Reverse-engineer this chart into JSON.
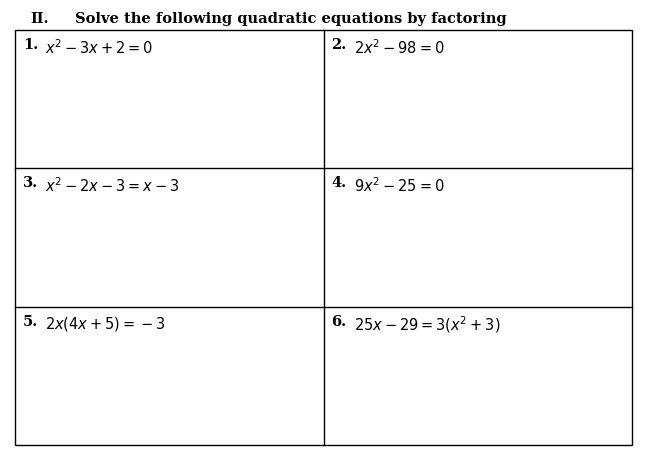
{
  "title_roman": "II.",
  "title_text": "Solve the following quadratic equations by factoring",
  "problems": [
    {
      "num": "1.",
      "eq": "$x^2 - 3x + 2 = 0$"
    },
    {
      "num": "2.",
      "eq": "$2x^2 - 98 = 0$"
    },
    {
      "num": "3.",
      "eq": "$x^2 - 2x - 3 = x - 3$"
    },
    {
      "num": "4.",
      "eq": "$9x^2 - 25 = 0$"
    },
    {
      "num": "5.",
      "eq": "$2x(4x + 5) = -3$"
    },
    {
      "num": "6.",
      "eq": "$25x - 29 = 3(x^2 + 3)$"
    }
  ],
  "bg_color": "#ffffff",
  "text_color": "#000000",
  "grid_color": "#000000",
  "title_fontsize": 10.5,
  "eq_fontsize": 10.5,
  "num_fontsize": 10.5,
  "fig_width": 6.47,
  "fig_height": 4.5,
  "dpi": 100
}
